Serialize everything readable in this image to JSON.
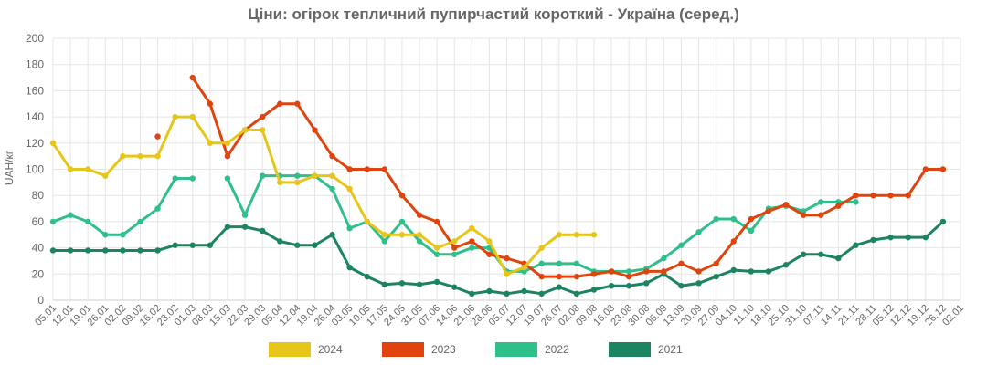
{
  "chart_data": {
    "type": "line",
    "title": "Ціни: огірок тепличний пупирчастий короткий - Україна (серед.)",
    "ylabel": "UAH/кг",
    "xlabel": "",
    "ylim": [
      0,
      200
    ],
    "yticks": [
      0,
      20,
      40,
      60,
      80,
      100,
      120,
      140,
      160,
      180,
      200
    ],
    "grid": true,
    "legend_position": "bottom",
    "categories": [
      "05.01",
      "12.01",
      "19.01",
      "26.01",
      "02.02",
      "09.02",
      "16.02",
      "23.02",
      "01.03",
      "08.03",
      "15.03",
      "22.03",
      "29.03",
      "05.04",
      "12.04",
      "19.04",
      "26.04",
      "03.05",
      "10.05",
      "17.05",
      "24.05",
      "31.05",
      "07.06",
      "14.06",
      "21.06",
      "28.06",
      "05.07",
      "12.07",
      "19.07",
      "26.07",
      "02.08",
      "09.08",
      "16.08",
      "23.08",
      "30.08",
      "06.09",
      "13.09",
      "20.09",
      "27.09",
      "04.10",
      "11.10",
      "18.10",
      "25.10",
      "31.10",
      "07.11",
      "14.11",
      "21.11",
      "28.11",
      "05.12",
      "12.12",
      "19.12",
      "26.12",
      "02.01"
    ],
    "series": [
      {
        "name": "2024",
        "color": "#e6c619",
        "values": [
          120,
          100,
          100,
          95,
          110,
          110,
          110,
          140,
          140,
          120,
          120,
          130,
          130,
          90,
          90,
          95,
          95,
          85,
          60,
          50,
          50,
          50,
          40,
          45,
          55,
          45,
          20,
          25,
          40,
          50,
          50,
          50,
          null,
          null,
          null,
          null,
          null,
          null,
          null,
          null,
          null,
          null,
          null,
          null,
          null,
          null,
          null,
          null,
          null,
          null,
          null,
          null,
          null
        ]
      },
      {
        "name": "2023",
        "color": "#e0440e",
        "values": [
          null,
          null,
          null,
          null,
          null,
          null,
          125,
          null,
          170,
          150,
          110,
          130,
          140,
          150,
          150,
          130,
          110,
          100,
          100,
          100,
          80,
          65,
          60,
          40,
          45,
          35,
          32,
          28,
          18,
          18,
          18,
          20,
          22,
          18,
          22,
          22,
          28,
          22,
          28,
          45,
          62,
          68,
          73,
          65,
          65,
          72,
          80,
          80,
          80,
          80,
          100,
          100,
          null
        ]
      },
      {
        "name": "2022",
        "color": "#2fbf8b",
        "values": [
          60,
          65,
          60,
          50,
          50,
          60,
          70,
          93,
          93,
          null,
          93,
          65,
          95,
          95,
          95,
          95,
          85,
          55,
          60,
          45,
          60,
          45,
          35,
          35,
          40,
          40,
          22,
          22,
          28,
          28,
          28,
          22,
          22,
          22,
          24,
          32,
          42,
          52,
          62,
          62,
          53,
          70,
          72,
          68,
          75,
          75,
          75,
          null,
          null,
          null,
          null,
          null,
          null
        ]
      },
      {
        "name": "2021",
        "color": "#1c8462",
        "values": [
          38,
          38,
          38,
          38,
          38,
          38,
          38,
          42,
          42,
          42,
          56,
          56,
          53,
          45,
          42,
          42,
          50,
          25,
          18,
          12,
          13,
          12,
          14,
          10,
          5,
          7,
          5,
          7,
          5,
          10,
          5,
          8,
          11,
          11,
          13,
          20,
          11,
          13,
          18,
          23,
          22,
          22,
          27,
          35,
          35,
          32,
          42,
          46,
          48,
          48,
          48,
          60,
          null
        ]
      }
    ]
  }
}
